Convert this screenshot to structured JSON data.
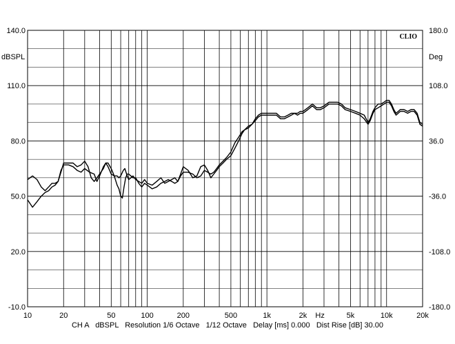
{
  "chart_data": {
    "type": "line",
    "x_scale": "log",
    "grid": true,
    "brand": "CLIO",
    "y_left": {
      "unit": "dBSPL",
      "range": [
        -10,
        140
      ],
      "ticks": [
        "140.0",
        "110.0",
        "80.0",
        "50.0",
        "20.0",
        "-10.0"
      ]
    },
    "y_right": {
      "unit": "Deg",
      "range": [
        -180,
        180
      ],
      "ticks": [
        "180.0",
        "108.0",
        "36.0",
        "-36.0",
        "-108.0",
        "-180.0"
      ]
    },
    "x_axis": {
      "unit": "Hz",
      "range": [
        10,
        20000
      ],
      "tick_values": [
        10,
        20,
        50,
        100,
        200,
        500,
        1000,
        2000,
        5000,
        10000,
        20000
      ],
      "tick_labels": [
        "10",
        "20",
        "50",
        "100",
        "200",
        "500",
        "1k",
        "2k",
        "5k",
        "10k",
        "20k"
      ]
    },
    "footer": {
      "channel": "CH A",
      "unit": "dBSPL",
      "resolution": "Resolution 1/6 Octave",
      "octave": "1/12 Octave",
      "delay": "Delay [ms] 0.000",
      "dist_rise": "Dist Rise [dB] 30.00"
    },
    "series": [
      {
        "values": [
          [
            10,
            59
          ],
          [
            11,
            61
          ],
          [
            12,
            59
          ],
          [
            13,
            55
          ],
          [
            14,
            53
          ],
          [
            15,
            55
          ],
          [
            16,
            57
          ],
          [
            17,
            57
          ],
          [
            18,
            58
          ],
          [
            19,
            64
          ],
          [
            20,
            67
          ],
          [
            22,
            67
          ],
          [
            24,
            66
          ],
          [
            26,
            64
          ],
          [
            28,
            63
          ],
          [
            30,
            65
          ],
          [
            33,
            63
          ],
          [
            36,
            62
          ],
          [
            38,
            58
          ],
          [
            40,
            61
          ],
          [
            43,
            66
          ],
          [
            45,
            68
          ],
          [
            47,
            66
          ],
          [
            50,
            62
          ],
          [
            53,
            61
          ],
          [
            56,
            61
          ],
          [
            58,
            60
          ],
          [
            60,
            61
          ],
          [
            63,
            64
          ],
          [
            65,
            65
          ],
          [
            68,
            61
          ],
          [
            70,
            59
          ],
          [
            73,
            60
          ],
          [
            76,
            61
          ],
          [
            80,
            59
          ],
          [
            85,
            58
          ],
          [
            90,
            57
          ],
          [
            95,
            59
          ],
          [
            100,
            57
          ],
          [
            110,
            56
          ],
          [
            120,
            58
          ],
          [
            130,
            60
          ],
          [
            140,
            57
          ],
          [
            150,
            58
          ],
          [
            160,
            59
          ],
          [
            170,
            60
          ],
          [
            180,
            58
          ],
          [
            190,
            61
          ],
          [
            200,
            63
          ],
          [
            220,
            63
          ],
          [
            240,
            62
          ],
          [
            260,
            60
          ],
          [
            280,
            61
          ],
          [
            300,
            64
          ],
          [
            320,
            63
          ],
          [
            340,
            62
          ],
          [
            360,
            63
          ],
          [
            380,
            65
          ],
          [
            400,
            67
          ],
          [
            430,
            69
          ],
          [
            460,
            71
          ],
          [
            500,
            74
          ],
          [
            540,
            79
          ],
          [
            580,
            82
          ],
          [
            620,
            85
          ],
          [
            650,
            86
          ],
          [
            700,
            88
          ],
          [
            750,
            89
          ],
          [
            800,
            92
          ],
          [
            850,
            94
          ],
          [
            900,
            95
          ],
          [
            950,
            95
          ],
          [
            1000,
            95
          ],
          [
            1100,
            95
          ],
          [
            1200,
            95
          ],
          [
            1300,
            93
          ],
          [
            1400,
            93
          ],
          [
            1500,
            94
          ],
          [
            1600,
            95
          ],
          [
            1700,
            95
          ],
          [
            1800,
            95
          ],
          [
            1900,
            96
          ],
          [
            2000,
            96
          ],
          [
            2200,
            98
          ],
          [
            2400,
            100
          ],
          [
            2600,
            98
          ],
          [
            2800,
            98
          ],
          [
            3000,
            99
          ],
          [
            3300,
            101
          ],
          [
            3600,
            101
          ],
          [
            3900,
            101
          ],
          [
            4200,
            100
          ],
          [
            4500,
            98
          ],
          [
            5000,
            97
          ],
          [
            5500,
            96
          ],
          [
            6000,
            95
          ],
          [
            6500,
            94
          ],
          [
            7000,
            90
          ],
          [
            7300,
            92
          ],
          [
            7700,
            96
          ],
          [
            8000,
            98
          ],
          [
            8500,
            100
          ],
          [
            9000,
            100
          ],
          [
            9500,
            101
          ],
          [
            10000,
            102
          ],
          [
            10500,
            102
          ],
          [
            11000,
            100
          ],
          [
            11500,
            97
          ],
          [
            12000,
            95
          ],
          [
            12500,
            96
          ],
          [
            13000,
            97
          ],
          [
            14000,
            97
          ],
          [
            15000,
            96
          ],
          [
            16000,
            97
          ],
          [
            17000,
            97
          ],
          [
            18000,
            95
          ],
          [
            19000,
            90
          ],
          [
            20000,
            89
          ]
        ]
      },
      {
        "values": [
          [
            10,
            48
          ],
          [
            11,
            44
          ],
          [
            12,
            47
          ],
          [
            13,
            50
          ],
          [
            14,
            52
          ],
          [
            15,
            53
          ],
          [
            16,
            55
          ],
          [
            17,
            56
          ],
          [
            18,
            58
          ],
          [
            19,
            63
          ],
          [
            20,
            68
          ],
          [
            22,
            68
          ],
          [
            24,
            68
          ],
          [
            26,
            66
          ],
          [
            28,
            67
          ],
          [
            30,
            69
          ],
          [
            32,
            66
          ],
          [
            34,
            60
          ],
          [
            36,
            58
          ],
          [
            38,
            60
          ],
          [
            40,
            62
          ],
          [
            43,
            65
          ],
          [
            45,
            68
          ],
          [
            47,
            68
          ],
          [
            50,
            65
          ],
          [
            53,
            61
          ],
          [
            56,
            56
          ],
          [
            58,
            54
          ],
          [
            60,
            50
          ],
          [
            62,
            49
          ],
          [
            64,
            55
          ],
          [
            66,
            60
          ],
          [
            68,
            62
          ],
          [
            70,
            62
          ],
          [
            73,
            61
          ],
          [
            76,
            60
          ],
          [
            80,
            60
          ],
          [
            85,
            57
          ],
          [
            90,
            55
          ],
          [
            95,
            57
          ],
          [
            100,
            56
          ],
          [
            110,
            54
          ],
          [
            120,
            55
          ],
          [
            130,
            57
          ],
          [
            140,
            58
          ],
          [
            150,
            59
          ],
          [
            160,
            58
          ],
          [
            170,
            57
          ],
          [
            180,
            58
          ],
          [
            190,
            62
          ],
          [
            200,
            66
          ],
          [
            220,
            64
          ],
          [
            240,
            60
          ],
          [
            260,
            61
          ],
          [
            280,
            66
          ],
          [
            300,
            67
          ],
          [
            320,
            64
          ],
          [
            340,
            60
          ],
          [
            360,
            62
          ],
          [
            380,
            64
          ],
          [
            400,
            66
          ],
          [
            430,
            68
          ],
          [
            460,
            70
          ],
          [
            500,
            72
          ],
          [
            540,
            76
          ],
          [
            580,
            80
          ],
          [
            620,
            84
          ],
          [
            650,
            86
          ],
          [
            700,
            87
          ],
          [
            750,
            89
          ],
          [
            800,
            91
          ],
          [
            850,
            93
          ],
          [
            900,
            94
          ],
          [
            950,
            94
          ],
          [
            1000,
            94
          ],
          [
            1100,
            94
          ],
          [
            1200,
            94
          ],
          [
            1300,
            92
          ],
          [
            1400,
            92
          ],
          [
            1500,
            93
          ],
          [
            1600,
            94
          ],
          [
            1700,
            95
          ],
          [
            1800,
            94
          ],
          [
            1900,
            95
          ],
          [
            2000,
            95
          ],
          [
            2200,
            97
          ],
          [
            2400,
            99
          ],
          [
            2600,
            97
          ],
          [
            2800,
            97
          ],
          [
            3000,
            98
          ],
          [
            3300,
            100
          ],
          [
            3600,
            100
          ],
          [
            3900,
            100
          ],
          [
            4200,
            99
          ],
          [
            4500,
            97
          ],
          [
            5000,
            96
          ],
          [
            5500,
            95
          ],
          [
            6000,
            94
          ],
          [
            6500,
            92
          ],
          [
            7000,
            89
          ],
          [
            7300,
            91
          ],
          [
            7700,
            95
          ],
          [
            8000,
            97
          ],
          [
            8500,
            98
          ],
          [
            9000,
            99
          ],
          [
            9500,
            100
          ],
          [
            10000,
            101
          ],
          [
            10500,
            101
          ],
          [
            11000,
            99
          ],
          [
            11500,
            96
          ],
          [
            12000,
            94
          ],
          [
            12500,
            95
          ],
          [
            13000,
            96
          ],
          [
            14000,
            96
          ],
          [
            15000,
            95
          ],
          [
            16000,
            96
          ],
          [
            17000,
            96
          ],
          [
            18000,
            94
          ],
          [
            19000,
            89
          ],
          [
            20000,
            88
          ]
        ]
      }
    ]
  }
}
